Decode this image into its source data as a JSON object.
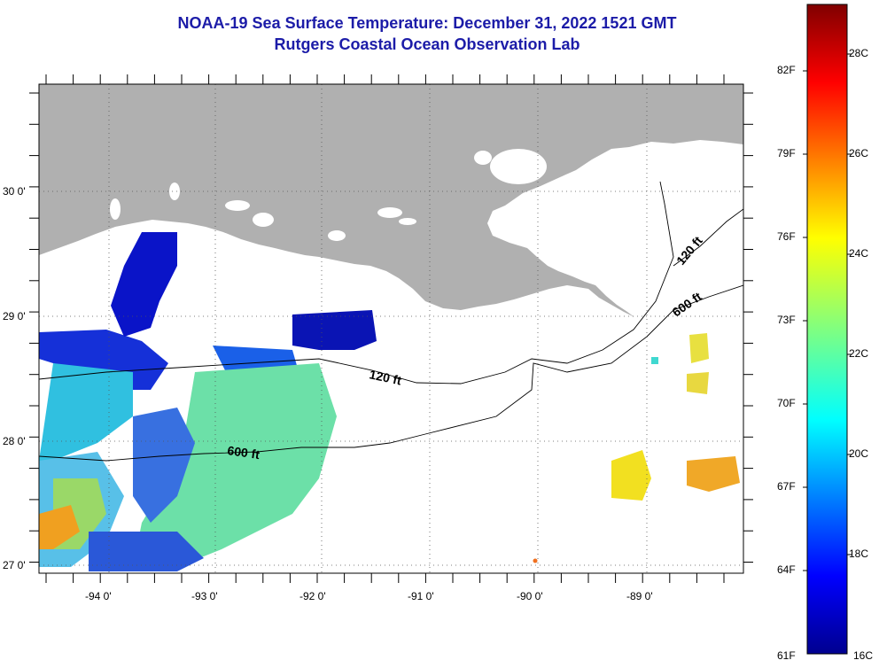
{
  "title": {
    "line1": "NOAA-19 Sea Surface Temperature:  December 31, 2022 1521 GMT",
    "line2": "Rutgers Coastal Ocean Observation Lab"
  },
  "lat_labels": [
    "30 0'",
    "29 0'",
    "28 0'",
    "27 0'"
  ],
  "lon_labels": [
    "-94 0'",
    "-93 0'",
    "-92 0'",
    "-91 0'",
    "-90 0'",
    "-89 0'"
  ],
  "contour_labels": {
    "c120_west": "120 ft",
    "c600_west": "600 ft",
    "c120_east": "120 ft",
    "c600_east": "600 ft"
  },
  "colorbar": {
    "fahrenheit": [
      "82F",
      "79F",
      "76F",
      "73F",
      "70F",
      "67F",
      "64F",
      "61F"
    ],
    "celsius": [
      "28C",
      "26C",
      "24C",
      "22C",
      "20C",
      "18C",
      "16C"
    ],
    "range_c": [
      16,
      29
    ]
  },
  "colors": {
    "land": "#b0b0b0",
    "title": "#1c1ca8"
  }
}
